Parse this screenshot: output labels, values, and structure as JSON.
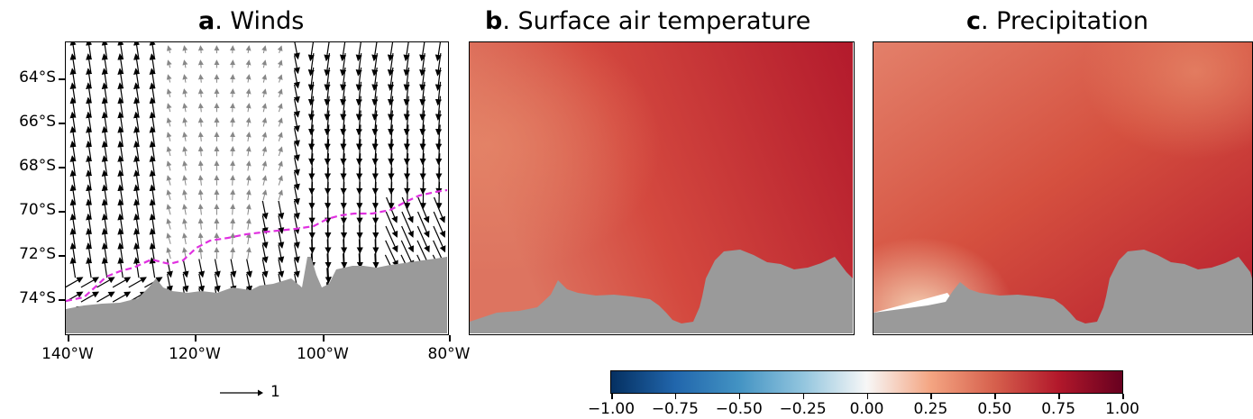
{
  "panels": [
    {
      "letter": "a",
      "title": ". Winds"
    },
    {
      "letter": "b",
      "title": ". Surface air temperature"
    },
    {
      "letter": "c",
      "title": ". Precipitation"
    }
  ],
  "map": {
    "lat_ticks": [
      "64°S",
      "66°S",
      "68°S",
      "70°S",
      "72°S",
      "74°S"
    ],
    "lon_ticks": [
      "140°W",
      "120°W",
      "100°W",
      "80°W"
    ],
    "lat_range": [
      -75.7,
      -62.2
    ],
    "lon_range": [
      -140,
      -80
    ],
    "coastline_label": "dashed magenta line",
    "land_color": "#9a9a9a",
    "coast_line_color": "#e030e0"
  },
  "wind_key": {
    "label": "1"
  },
  "colorbar": {
    "ticks": [
      "−1.00",
      "−0.75",
      "−0.50",
      "−0.25",
      "0.00",
      "0.25",
      "0.50",
      "0.75",
      "1.00"
    ],
    "range": [
      -1.0,
      1.0
    ],
    "colormap": "RdBu_r"
  }
}
